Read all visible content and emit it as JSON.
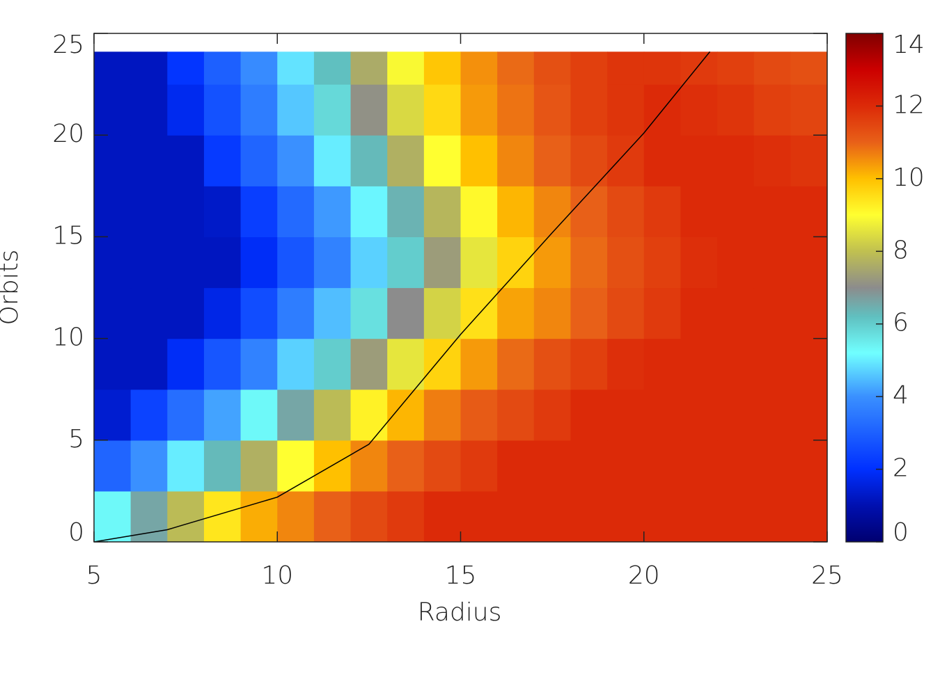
{
  "chart_data": {
    "type": "heatmap",
    "xlabel": "Radius",
    "ylabel": "Orbits",
    "xlim": [
      5,
      25
    ],
    "ylim": [
      0,
      25
    ],
    "xticks": [
      5,
      10,
      15,
      20,
      25
    ],
    "yticks": [
      0,
      5,
      10,
      15,
      20,
      25
    ],
    "x_edges": [
      5,
      6,
      7,
      8,
      9,
      10,
      11,
      12,
      13,
      14,
      15,
      16,
      17,
      18,
      19,
      20,
      21,
      22,
      23,
      24,
      25
    ],
    "y_edges": [
      0,
      2.5,
      5,
      7.5,
      10,
      12.5,
      15,
      17.5,
      20,
      22.5,
      24.1
    ],
    "values": [
      [
        5.3,
        6.6,
        7.9,
        9.4,
        10.2,
        10.6,
        11,
        11.4,
        11.7,
        12,
        12,
        12,
        12,
        12,
        12,
        12,
        12,
        12,
        12,
        12
      ],
      [
        3.1,
        4.0,
        5,
        6.3,
        7.7,
        9,
        10,
        10.6,
        11,
        11.4,
        11.7,
        12,
        12,
        12,
        12,
        12,
        12,
        12,
        12,
        12
      ],
      [
        1.4,
        2.4,
        3.3,
        4.2,
        5.3,
        6.6,
        7.9,
        9.2,
        10.1,
        10.7,
        11.1,
        11.4,
        11.7,
        12,
        12,
        12,
        12,
        12,
        12,
        12
      ],
      [
        1.2,
        1.2,
        1.9,
        2.8,
        3.7,
        4.7,
        6.0,
        7.3,
        8.6,
        9.7,
        10.4,
        10.9,
        11.3,
        11.6,
        11.9,
        12,
        12,
        12,
        12,
        12
      ],
      [
        1.2,
        1.2,
        1.2,
        1.7,
        2.6,
        3.6,
        4.5,
        5.7,
        7,
        8.3,
        9.5,
        10.3,
        10.6,
        11,
        11.4,
        11.7,
        12,
        12,
        12,
        12
      ],
      [
        1.2,
        1.2,
        1.2,
        1.2,
        1.9,
        2.8,
        3.7,
        4.7,
        6.0,
        7.3,
        8.6,
        9.7,
        10.4,
        10.9,
        11.3,
        11.6,
        11.9,
        12,
        12,
        12
      ],
      [
        1.2,
        1.2,
        1.2,
        1.3,
        2.3,
        3.2,
        4.1,
        5.1,
        6.4,
        7.8,
        9.1,
        10.1,
        10.6,
        11,
        11.4,
        11.7,
        12,
        12,
        12,
        12
      ],
      [
        1.2,
        1.2,
        1.2,
        2.2,
        3.1,
        4,
        5,
        6.3,
        7.7,
        9,
        10,
        10.6,
        11,
        11.4,
        11.7,
        12,
        12,
        12,
        11.9,
        11.8
      ],
      [
        1.2,
        1.2,
        1.8,
        2.7,
        3.6,
        4.6,
        5.8,
        7.1,
        8.4,
        9.6,
        10.4,
        10.8,
        11.2,
        11.6,
        11.8,
        12,
        11.9,
        11.8,
        11.6,
        11.5
      ],
      [
        1.2,
        1.2,
        2.1,
        3.0,
        3.9,
        4.9,
        6.2,
        7.6,
        8.9,
        9.9,
        10.5,
        10.9,
        11.3,
        11.6,
        11.8,
        11.8,
        11.7,
        11.6,
        11.4,
        11.3
      ]
    ],
    "clim": [
      0,
      14
    ],
    "cticks": [
      0,
      2,
      4,
      6,
      8,
      10,
      12,
      14
    ],
    "colorscale": [
      [
        0,
        "#000070"
      ],
      [
        1,
        "#0010b0"
      ],
      [
        2,
        "#0030ff"
      ],
      [
        4,
        "#3a90ff"
      ],
      [
        5.2,
        "#70ffff"
      ],
      [
        6.2,
        "#60c0c0"
      ],
      [
        7,
        "#8c8c8c"
      ],
      [
        8,
        "#c0c050"
      ],
      [
        9,
        "#ffff30"
      ],
      [
        10,
        "#ffc000"
      ],
      [
        11,
        "#e86018"
      ],
      [
        12,
        "#dc2a08"
      ],
      [
        13,
        "#cc0000"
      ],
      [
        14,
        "#800000"
      ]
    ],
    "curve": {
      "color": "#000000",
      "x": [
        5,
        7,
        10,
        12.5,
        15,
        17.5,
        20,
        21.8
      ],
      "y": [
        0,
        0.6,
        2.2,
        4.8,
        10.2,
        15.2,
        20.1,
        24.1
      ]
    }
  }
}
